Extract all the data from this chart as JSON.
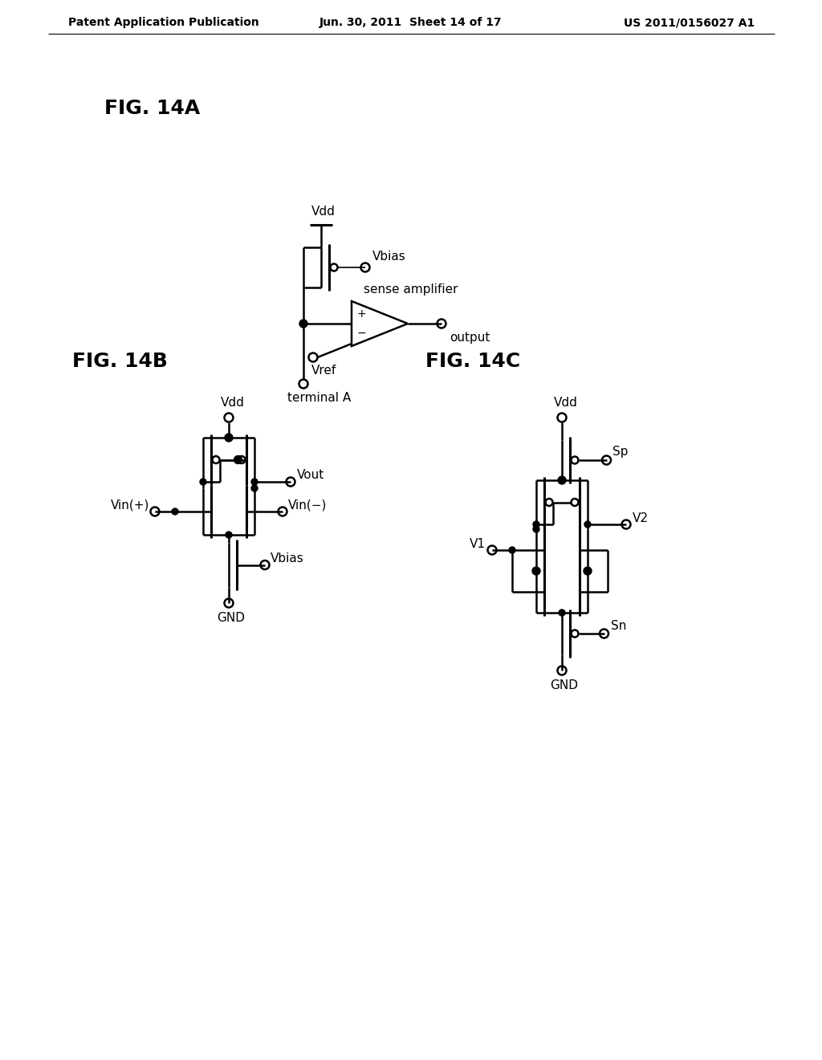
{
  "bg_color": "#ffffff",
  "line_color": "#000000",
  "header_left": "Patent Application Publication",
  "header_center": "Jun. 30, 2011  Sheet 14 of 17",
  "header_right": "US 2011/0156027 A1",
  "fig14a_label": "FIG. 14A",
  "fig14b_label": "FIG. 14B",
  "fig14c_label": "FIG. 14C"
}
